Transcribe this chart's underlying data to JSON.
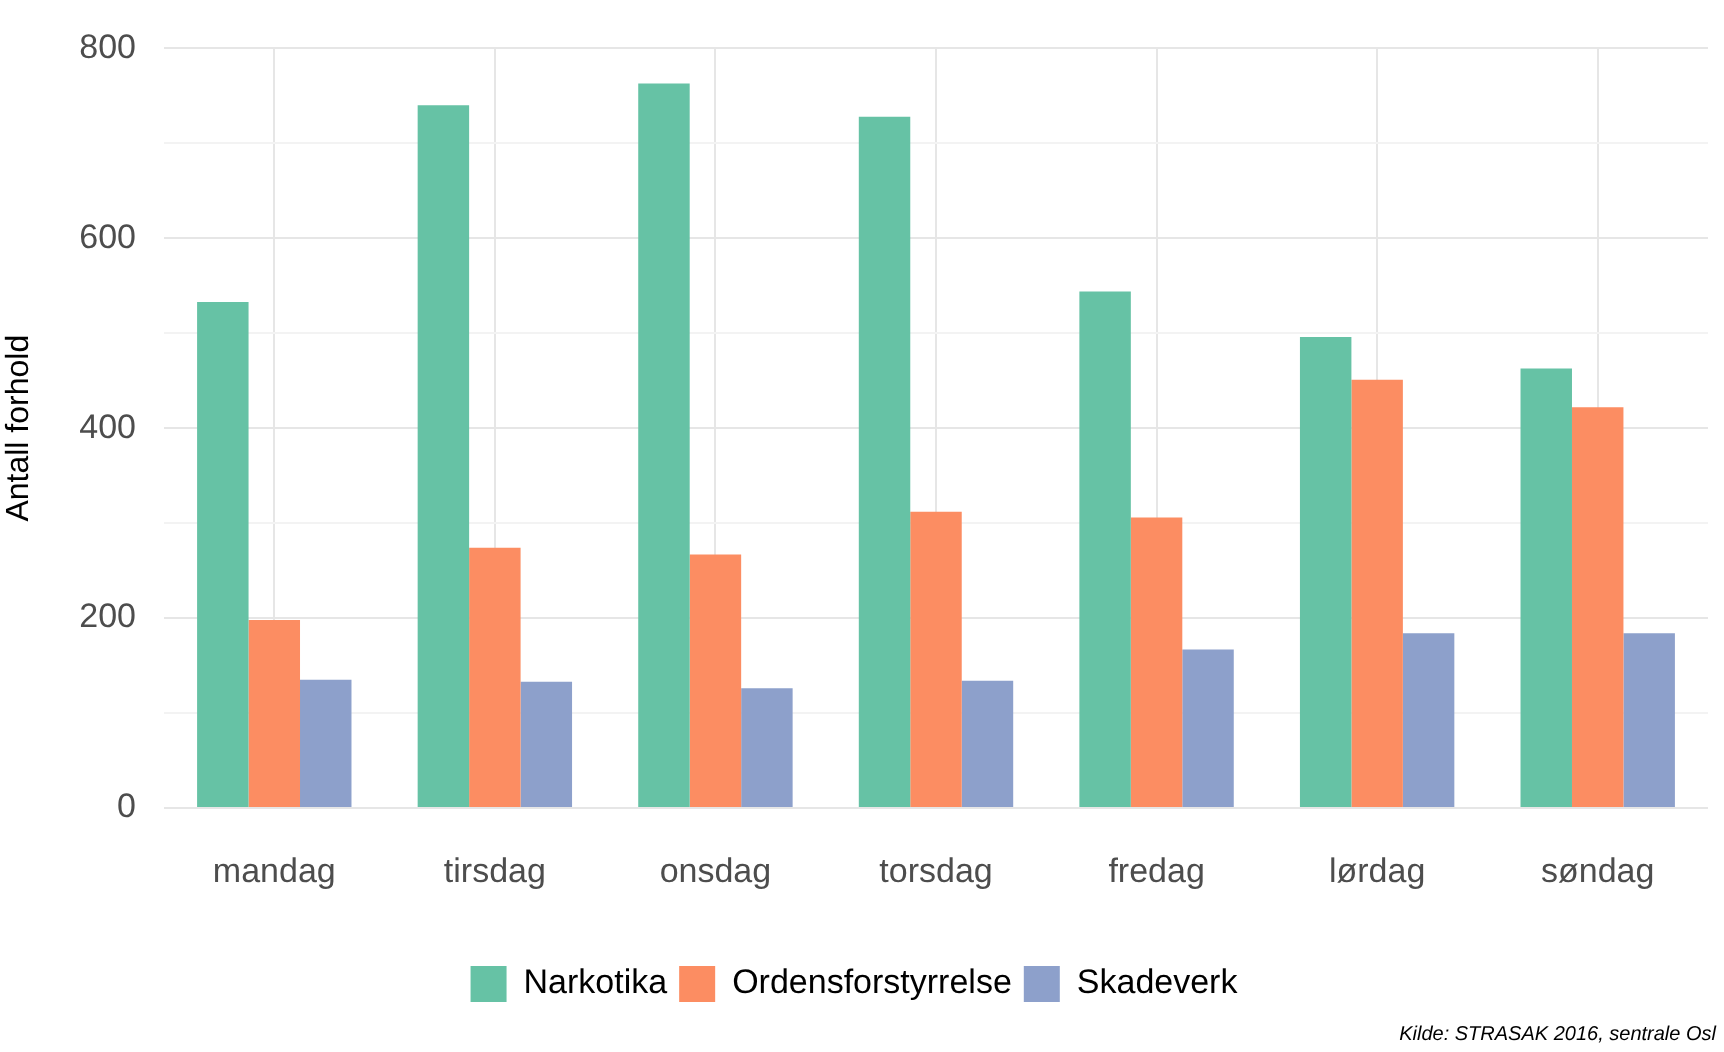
{
  "chart_data": {
    "type": "bar",
    "ylabel": "Antall forhold",
    "categories": [
      "mandag",
      "tirsdag",
      "onsdag",
      "torsdag",
      "fredag",
      "lørdag",
      "søndag"
    ],
    "series": [
      {
        "name": "Narkotika",
        "color": "#66c2a5",
        "values": [
          533,
          740,
          763,
          728,
          544,
          496,
          463
        ]
      },
      {
        "name": "Ordensforstyrrelse",
        "color": "#fc8d62",
        "values": [
          198,
          274,
          267,
          312,
          306,
          451,
          422
        ]
      },
      {
        "name": "Skadeverk",
        "color": "#8da0cb",
        "values": [
          135,
          133,
          126,
          134,
          167,
          184,
          184
        ]
      }
    ],
    "ylim": [
      0,
      800
    ],
    "yticks": [
      0,
      {
        "value": 100,
        "label": null
      },
      200,
      {
        "value": 300,
        "label": null
      },
      400,
      {
        "value": 500,
        "label": null
      },
      600,
      {
        "value": 700,
        "label": null
      },
      800
    ],
    "grid": true,
    "legend": "bottom",
    "annotations": [
      "Kilde: STRASAK 2016, sentrale Osl"
    ]
  }
}
